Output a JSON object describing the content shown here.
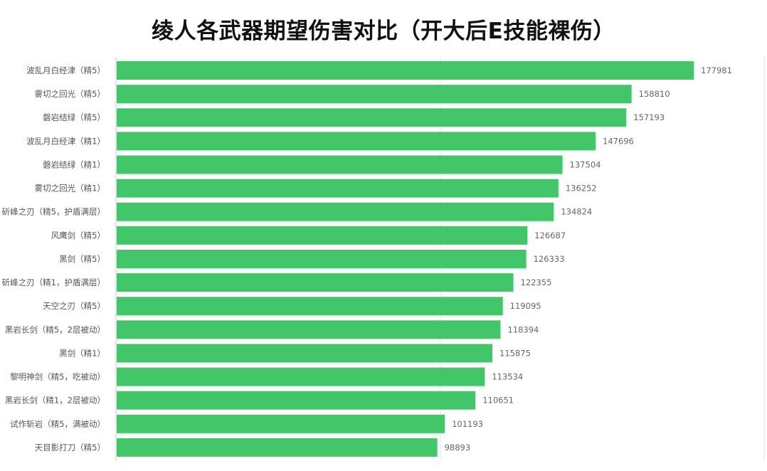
{
  "chart_data": {
    "type": "bar",
    "orientation": "horizontal",
    "title": "绫人各武器期望伤害对比（开大后E技能裸伤）",
    "xlabel": "",
    "ylabel": "",
    "xlim": [
      0,
      200000
    ],
    "grid": true,
    "legend": "none",
    "bar_color": "#42c669",
    "categories": [
      "波乱月白经津（精5）",
      "雾切之回光（精5）",
      "磐岩结绿（精5）",
      "波乱月白经津（精1）",
      "磐岩结绿（精1）",
      "雾切之回光（精1）",
      "斫峰之刃（精5，护盾满层）",
      "风鹰剑（精5）",
      "黑剑（精5）",
      "斫峰之刃（精1，护盾满层）",
      "天空之刃（精5）",
      "黑岩长剑（精5，2层被动）",
      "黑剑（精1）",
      "黎明神剑（精5，吃被动）",
      "黑岩长剑（精1，2层被动）",
      "试作斩岩（精5，满被动）",
      "天目影打刀（精5）"
    ],
    "values": [
      177981,
      158810,
      157193,
      147696,
      137504,
      136252,
      134824,
      126687,
      126333,
      122355,
      119095,
      118394,
      115875,
      113534,
      110651,
      101193,
      98893
    ]
  }
}
